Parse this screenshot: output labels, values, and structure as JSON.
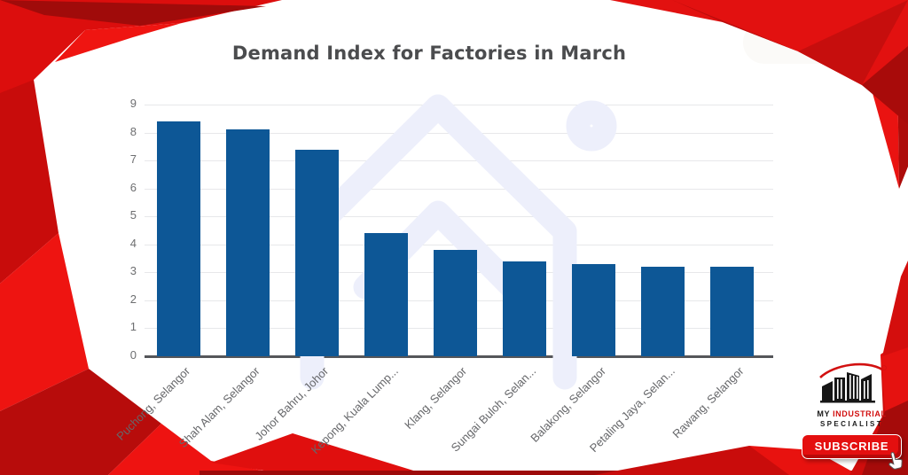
{
  "poster": {
    "background": "#ffffff",
    "accent_red": "#d90f0e",
    "watermark_color": "#edeffb",
    "title_color": "#4b4c4e"
  },
  "chart_data": {
    "type": "bar",
    "title": "Demand Index for Factories in March",
    "categories": [
      "Puchong, Selangor",
      "Shah Alam, Selangor",
      "Johor Bahru, Johor",
      "Kepong, Kuala Lump...",
      "Klang, Selangor",
      "Sungai Buloh, Selan...",
      "Balakong, Selangor",
      "Petaling Jaya, Selan...",
      "Rawang, Selangor"
    ],
    "values": [
      8.4,
      8.1,
      7.4,
      4.4,
      3.8,
      3.4,
      3.3,
      3.2,
      3.2
    ],
    "yticks": [
      0,
      1,
      2,
      3,
      4,
      5,
      6,
      7,
      8,
      9
    ],
    "ylim": [
      0,
      9
    ],
    "xlabel": "",
    "ylabel": "",
    "grid": true,
    "legend": false,
    "bar_color": "#0d5796",
    "label_rotation_deg": -45
  },
  "branding": {
    "logo_text_prefix": "MY ",
    "logo_text_highlight": "INDUSTRIAL",
    "logo_text_line2": "SPECIALIST",
    "subscribe_label": "SUBSCRIBE"
  },
  "icons": {
    "watermark": "house-outline-watermark-icon",
    "logo": "factory-buildings-icon",
    "cursor": "hand-cursor-icon"
  }
}
